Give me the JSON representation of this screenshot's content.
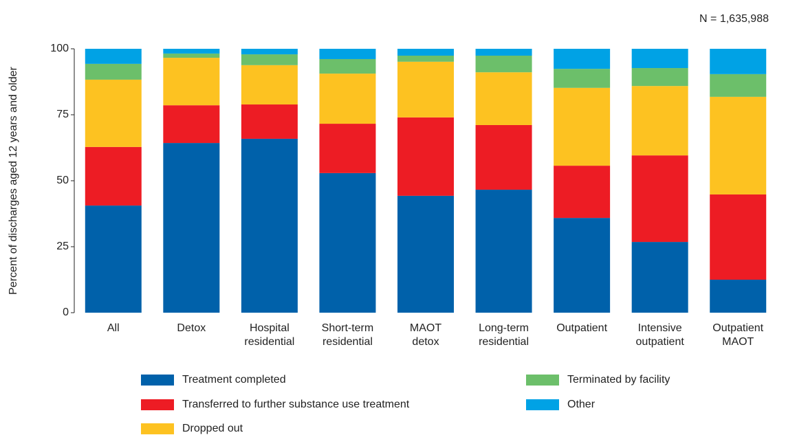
{
  "chart_data": {
    "type": "stacked_bar",
    "note": "N = 1,635,988",
    "ylabel": "Percent of discharges aged 12 years and older",
    "categories": [
      "All",
      "Detox",
      "Hospital\nresidential",
      "Short-term\nresidential",
      "MAOT\ndetox",
      "Long-term\nresidential",
      "Outpatient",
      "Intensive\noutpatient",
      "Outpatient\nMAOT"
    ],
    "series": [
      {
        "name": "Treatment completed",
        "color": "#0061aa",
        "values": [
          40.6,
          64.3,
          65.9,
          52.9,
          44.3,
          46.6,
          35.9,
          26.8,
          12.5
        ]
      },
      {
        "name": "Transferred to further substance use treatment",
        "color": "#ed1c24",
        "values": [
          22.2,
          14.3,
          13.0,
          18.7,
          29.7,
          24.5,
          19.8,
          32.8,
          32.3
        ]
      },
      {
        "name": "Dropped out",
        "color": "#fdc221",
        "values": [
          25.5,
          18.0,
          14.9,
          19.0,
          21.1,
          20.0,
          29.5,
          26.3,
          37.0
        ]
      },
      {
        "name": "Terminated by facility",
        "color": "#6cbf6a",
        "values": [
          6.0,
          1.6,
          4.1,
          5.5,
          2.3,
          6.3,
          7.2,
          6.8,
          8.6
        ]
      },
      {
        "name": "Other",
        "color": "#00a2e5",
        "values": [
          5.7,
          1.8,
          2.1,
          3.9,
          2.6,
          2.6,
          7.6,
          7.3,
          9.6
        ]
      }
    ],
    "ylim": [
      0,
      100
    ],
    "yticks": [
      0,
      25,
      50,
      75,
      100
    ]
  }
}
